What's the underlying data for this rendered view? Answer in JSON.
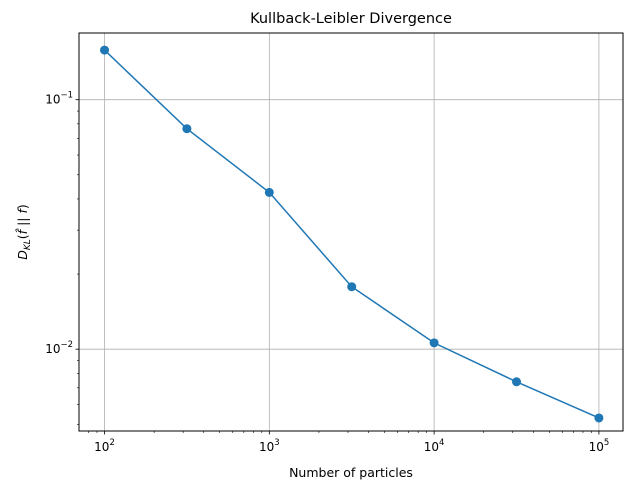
{
  "chart_data": {
    "type": "line",
    "title": "Kullback-Leibler Divergence",
    "xlabel": "Number of particles",
    "ylabel": "D_KL(f̂ || f)",
    "x_scale": "log",
    "y_scale": "log",
    "xlim": [
      70,
      140000
    ],
    "ylim": [
      0.0047,
      0.185
    ],
    "grid": true,
    "x_ticks": [
      {
        "value": 100,
        "base": "10",
        "exp": "2"
      },
      {
        "value": 1000,
        "base": "10",
        "exp": "3"
      },
      {
        "value": 10000,
        "base": "10",
        "exp": "4"
      },
      {
        "value": 100000,
        "base": "10",
        "exp": "5"
      }
    ],
    "y_ticks": [
      {
        "value": 0.1,
        "base": "10",
        "exp": "−1"
      },
      {
        "value": 0.01,
        "base": "10",
        "exp": "−2"
      }
    ],
    "series": [
      {
        "color": "#1f77b4",
        "marker": "circle",
        "points": [
          {
            "x": 100,
            "y": 0.158
          },
          {
            "x": 316,
            "y": 0.0765
          },
          {
            "x": 1000,
            "y": 0.0425
          },
          {
            "x": 3162,
            "y": 0.0178
          },
          {
            "x": 10000,
            "y": 0.0106
          },
          {
            "x": 31623,
            "y": 0.0074
          },
          {
            "x": 100000,
            "y": 0.0053
          }
        ]
      }
    ]
  }
}
